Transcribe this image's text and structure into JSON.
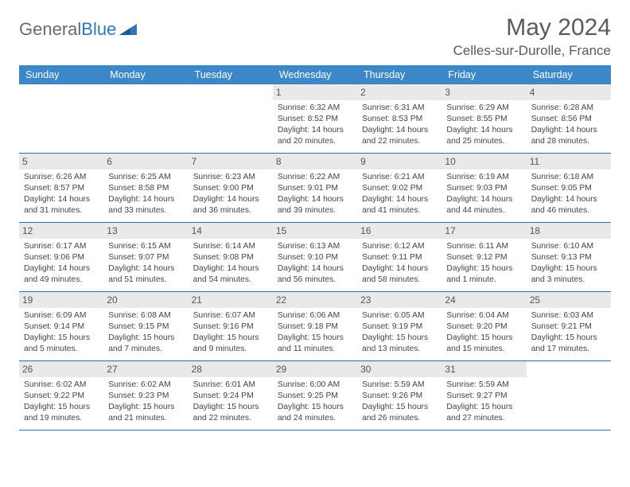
{
  "brand": {
    "part1": "General",
    "part2": "Blue"
  },
  "title": "May 2024",
  "location": "Celles-sur-Durolle, France",
  "colors": {
    "header_bar": "#3b87c8",
    "week_divider": "#2d6ca8",
    "daynum_bg": "#e9e9e9",
    "text": "#444444",
    "brand_gray": "#6a6a6a",
    "brand_blue": "#2d77bd"
  },
  "weekdays": [
    "Sunday",
    "Monday",
    "Tuesday",
    "Wednesday",
    "Thursday",
    "Friday",
    "Saturday"
  ],
  "weeks": [
    [
      {
        "empty": true
      },
      {
        "empty": true
      },
      {
        "empty": true
      },
      {
        "num": "1",
        "sunrise": "Sunrise: 6:32 AM",
        "sunset": "Sunset: 8:52 PM",
        "day1": "Daylight: 14 hours",
        "day2": "and 20 minutes."
      },
      {
        "num": "2",
        "sunrise": "Sunrise: 6:31 AM",
        "sunset": "Sunset: 8:53 PM",
        "day1": "Daylight: 14 hours",
        "day2": "and 22 minutes."
      },
      {
        "num": "3",
        "sunrise": "Sunrise: 6:29 AM",
        "sunset": "Sunset: 8:55 PM",
        "day1": "Daylight: 14 hours",
        "day2": "and 25 minutes."
      },
      {
        "num": "4",
        "sunrise": "Sunrise: 6:28 AM",
        "sunset": "Sunset: 8:56 PM",
        "day1": "Daylight: 14 hours",
        "day2": "and 28 minutes."
      }
    ],
    [
      {
        "num": "5",
        "sunrise": "Sunrise: 6:26 AM",
        "sunset": "Sunset: 8:57 PM",
        "day1": "Daylight: 14 hours",
        "day2": "and 31 minutes."
      },
      {
        "num": "6",
        "sunrise": "Sunrise: 6:25 AM",
        "sunset": "Sunset: 8:58 PM",
        "day1": "Daylight: 14 hours",
        "day2": "and 33 minutes."
      },
      {
        "num": "7",
        "sunrise": "Sunrise: 6:23 AM",
        "sunset": "Sunset: 9:00 PM",
        "day1": "Daylight: 14 hours",
        "day2": "and 36 minutes."
      },
      {
        "num": "8",
        "sunrise": "Sunrise: 6:22 AM",
        "sunset": "Sunset: 9:01 PM",
        "day1": "Daylight: 14 hours",
        "day2": "and 39 minutes."
      },
      {
        "num": "9",
        "sunrise": "Sunrise: 6:21 AM",
        "sunset": "Sunset: 9:02 PM",
        "day1": "Daylight: 14 hours",
        "day2": "and 41 minutes."
      },
      {
        "num": "10",
        "sunrise": "Sunrise: 6:19 AM",
        "sunset": "Sunset: 9:03 PM",
        "day1": "Daylight: 14 hours",
        "day2": "and 44 minutes."
      },
      {
        "num": "11",
        "sunrise": "Sunrise: 6:18 AM",
        "sunset": "Sunset: 9:05 PM",
        "day1": "Daylight: 14 hours",
        "day2": "and 46 minutes."
      }
    ],
    [
      {
        "num": "12",
        "sunrise": "Sunrise: 6:17 AM",
        "sunset": "Sunset: 9:06 PM",
        "day1": "Daylight: 14 hours",
        "day2": "and 49 minutes."
      },
      {
        "num": "13",
        "sunrise": "Sunrise: 6:15 AM",
        "sunset": "Sunset: 9:07 PM",
        "day1": "Daylight: 14 hours",
        "day2": "and 51 minutes."
      },
      {
        "num": "14",
        "sunrise": "Sunrise: 6:14 AM",
        "sunset": "Sunset: 9:08 PM",
        "day1": "Daylight: 14 hours",
        "day2": "and 54 minutes."
      },
      {
        "num": "15",
        "sunrise": "Sunrise: 6:13 AM",
        "sunset": "Sunset: 9:10 PM",
        "day1": "Daylight: 14 hours",
        "day2": "and 56 minutes."
      },
      {
        "num": "16",
        "sunrise": "Sunrise: 6:12 AM",
        "sunset": "Sunset: 9:11 PM",
        "day1": "Daylight: 14 hours",
        "day2": "and 58 minutes."
      },
      {
        "num": "17",
        "sunrise": "Sunrise: 6:11 AM",
        "sunset": "Sunset: 9:12 PM",
        "day1": "Daylight: 15 hours",
        "day2": "and 1 minute."
      },
      {
        "num": "18",
        "sunrise": "Sunrise: 6:10 AM",
        "sunset": "Sunset: 9:13 PM",
        "day1": "Daylight: 15 hours",
        "day2": "and 3 minutes."
      }
    ],
    [
      {
        "num": "19",
        "sunrise": "Sunrise: 6:09 AM",
        "sunset": "Sunset: 9:14 PM",
        "day1": "Daylight: 15 hours",
        "day2": "and 5 minutes."
      },
      {
        "num": "20",
        "sunrise": "Sunrise: 6:08 AM",
        "sunset": "Sunset: 9:15 PM",
        "day1": "Daylight: 15 hours",
        "day2": "and 7 minutes."
      },
      {
        "num": "21",
        "sunrise": "Sunrise: 6:07 AM",
        "sunset": "Sunset: 9:16 PM",
        "day1": "Daylight: 15 hours",
        "day2": "and 9 minutes."
      },
      {
        "num": "22",
        "sunrise": "Sunrise: 6:06 AM",
        "sunset": "Sunset: 9:18 PM",
        "day1": "Daylight: 15 hours",
        "day2": "and 11 minutes."
      },
      {
        "num": "23",
        "sunrise": "Sunrise: 6:05 AM",
        "sunset": "Sunset: 9:19 PM",
        "day1": "Daylight: 15 hours",
        "day2": "and 13 minutes."
      },
      {
        "num": "24",
        "sunrise": "Sunrise: 6:04 AM",
        "sunset": "Sunset: 9:20 PM",
        "day1": "Daylight: 15 hours",
        "day2": "and 15 minutes."
      },
      {
        "num": "25",
        "sunrise": "Sunrise: 6:03 AM",
        "sunset": "Sunset: 9:21 PM",
        "day1": "Daylight: 15 hours",
        "day2": "and 17 minutes."
      }
    ],
    [
      {
        "num": "26",
        "sunrise": "Sunrise: 6:02 AM",
        "sunset": "Sunset: 9:22 PM",
        "day1": "Daylight: 15 hours",
        "day2": "and 19 minutes."
      },
      {
        "num": "27",
        "sunrise": "Sunrise: 6:02 AM",
        "sunset": "Sunset: 9:23 PM",
        "day1": "Daylight: 15 hours",
        "day2": "and 21 minutes."
      },
      {
        "num": "28",
        "sunrise": "Sunrise: 6:01 AM",
        "sunset": "Sunset: 9:24 PM",
        "day1": "Daylight: 15 hours",
        "day2": "and 22 minutes."
      },
      {
        "num": "29",
        "sunrise": "Sunrise: 6:00 AM",
        "sunset": "Sunset: 9:25 PM",
        "day1": "Daylight: 15 hours",
        "day2": "and 24 minutes."
      },
      {
        "num": "30",
        "sunrise": "Sunrise: 5:59 AM",
        "sunset": "Sunset: 9:26 PM",
        "day1": "Daylight: 15 hours",
        "day2": "and 26 minutes."
      },
      {
        "num": "31",
        "sunrise": "Sunrise: 5:59 AM",
        "sunset": "Sunset: 9:27 PM",
        "day1": "Daylight: 15 hours",
        "day2": "and 27 minutes."
      },
      {
        "empty": true
      }
    ]
  ]
}
